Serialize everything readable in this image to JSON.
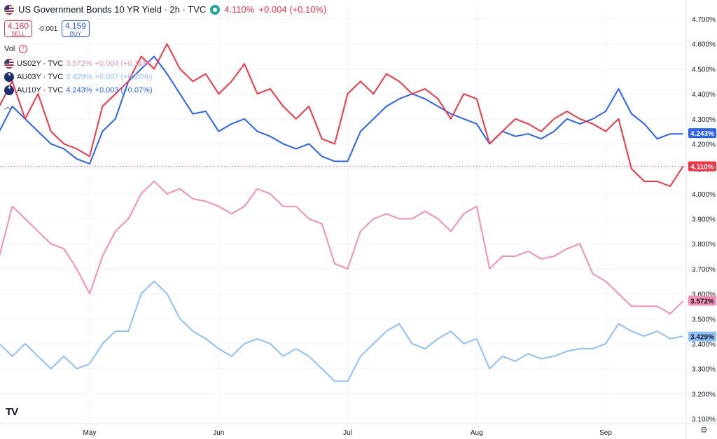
{
  "header": {
    "title": "US Government Bonds 10 YR Yield · 2h · TVC",
    "price": "4.110%",
    "change": "+0.004 (+0.10%)"
  },
  "trade": {
    "sell_price": "4.160",
    "sell_label": "SELL",
    "buy_price": "4.159",
    "buy_label": "BUY",
    "spread": "-0.001"
  },
  "vol_label": "Vol",
  "legend": [
    {
      "symbol": "US02Y · TVC",
      "value": "3.572%",
      "change": "+0.004 (+0.11%)",
      "color": "#f48fb1",
      "flag": "us"
    },
    {
      "symbol": "AU03Y · TVC",
      "value": "3.429%",
      "change": "+0.007 (+0.20%)",
      "color": "#90bff9",
      "flag": "au"
    },
    {
      "symbol": "AU10Y · TVC",
      "value": "4.243%",
      "change": "+0.003 (+0.07%)",
      "color": "#2962ff",
      "flag": "au"
    }
  ],
  "colors": {
    "us10y": "#f23645",
    "us02y": "#f48fb1",
    "au03y": "#90bff9",
    "au10y": "#2962ff",
    "grid": "#f0f3fa",
    "axis_text": "#131722"
  },
  "chart_data": {
    "type": "line",
    "x_ticks": [
      "May",
      "Jun",
      "Jul",
      "Aug",
      "Sep"
    ],
    "y_ticks": [
      "4.700%",
      "4.600%",
      "4.500%",
      "4.400%",
      "4.300%",
      "4.200%",
      "4.100%",
      "4.000%",
      "3.900%",
      "3.800%",
      "3.700%",
      "3.600%",
      "3.500%",
      "3.400%",
      "3.300%",
      "3.200%",
      "3.100%"
    ],
    "ylim": [
      3.1,
      4.7
    ],
    "x_labeled_positions": {
      "May": 0.0,
      "Jun": 1.0,
      "Jul": 2.0,
      "Aug": 3.0,
      "Sep": 4.0
    },
    "x": [
      -0.7,
      -0.6,
      -0.5,
      -0.4,
      -0.3,
      -0.2,
      -0.1,
      0.0,
      0.1,
      0.2,
      0.3,
      0.4,
      0.5,
      0.6,
      0.7,
      0.8,
      0.9,
      1.0,
      1.1,
      1.2,
      1.3,
      1.4,
      1.5,
      1.6,
      1.7,
      1.8,
      1.9,
      2.0,
      2.1,
      2.2,
      2.3,
      2.4,
      2.5,
      2.6,
      2.7,
      2.8,
      2.9,
      3.0,
      3.1,
      3.2,
      3.3,
      3.4,
      3.5,
      3.6,
      3.7,
      3.8,
      3.9,
      4.0,
      4.1,
      4.2,
      4.3,
      4.4,
      4.5,
      4.6
    ],
    "series": [
      {
        "name": "US Government Bonds 10 YR Yield",
        "last": "4.110%",
        "values": [
          4.35,
          4.45,
          4.3,
          4.4,
          4.25,
          4.2,
          4.18,
          4.15,
          4.35,
          4.4,
          4.45,
          4.55,
          4.5,
          4.6,
          4.5,
          4.45,
          4.48,
          4.4,
          4.45,
          4.52,
          4.4,
          4.42,
          4.35,
          4.3,
          4.35,
          4.22,
          4.2,
          4.4,
          4.45,
          4.4,
          4.48,
          4.45,
          4.4,
          4.42,
          4.38,
          4.3,
          4.4,
          4.38,
          4.2,
          4.25,
          4.3,
          4.28,
          4.25,
          4.3,
          4.33,
          4.3,
          4.28,
          4.25,
          4.3,
          4.1,
          4.05,
          4.05,
          4.03,
          4.11
        ]
      },
      {
        "name": "US02Y",
        "last": "3.572%",
        "values": [
          3.75,
          3.95,
          3.9,
          3.85,
          3.8,
          3.78,
          3.7,
          3.6,
          3.75,
          3.85,
          3.9,
          4.0,
          4.05,
          4.0,
          4.02,
          3.98,
          3.97,
          3.95,
          3.92,
          3.95,
          4.02,
          4.0,
          3.95,
          3.95,
          3.9,
          3.88,
          3.72,
          3.7,
          3.85,
          3.9,
          3.92,
          3.9,
          3.9,
          3.93,
          3.9,
          3.85,
          3.92,
          3.95,
          3.7,
          3.75,
          3.75,
          3.77,
          3.74,
          3.75,
          3.78,
          3.8,
          3.68,
          3.65,
          3.6,
          3.55,
          3.55,
          3.55,
          3.52,
          3.57
        ]
      },
      {
        "name": "AU03Y",
        "last": "3.429%",
        "values": [
          3.4,
          3.35,
          3.4,
          3.35,
          3.3,
          3.35,
          3.3,
          3.32,
          3.4,
          3.45,
          3.45,
          3.6,
          3.65,
          3.6,
          3.5,
          3.45,
          3.42,
          3.38,
          3.35,
          3.4,
          3.42,
          3.4,
          3.35,
          3.38,
          3.35,
          3.3,
          3.25,
          3.25,
          3.35,
          3.4,
          3.45,
          3.48,
          3.4,
          3.38,
          3.42,
          3.45,
          3.4,
          3.42,
          3.3,
          3.35,
          3.33,
          3.36,
          3.34,
          3.35,
          3.37,
          3.38,
          3.38,
          3.4,
          3.48,
          3.45,
          3.43,
          3.45,
          3.42,
          3.43
        ]
      },
      {
        "name": "AU10Y",
        "last": "4.243%",
        "values": [
          4.25,
          4.35,
          4.3,
          4.25,
          4.2,
          4.18,
          4.14,
          4.12,
          4.25,
          4.3,
          4.45,
          4.5,
          4.55,
          4.48,
          4.4,
          4.32,
          4.33,
          4.25,
          4.28,
          4.3,
          4.25,
          4.23,
          4.2,
          4.18,
          4.2,
          4.15,
          4.13,
          4.13,
          4.25,
          4.3,
          4.35,
          4.38,
          4.4,
          4.38,
          4.35,
          4.32,
          4.3,
          4.28,
          4.2,
          4.25,
          4.23,
          4.24,
          4.22,
          4.25,
          4.3,
          4.28,
          4.3,
          4.33,
          4.42,
          4.32,
          4.28,
          4.22,
          4.24,
          4.24
        ]
      }
    ]
  }
}
